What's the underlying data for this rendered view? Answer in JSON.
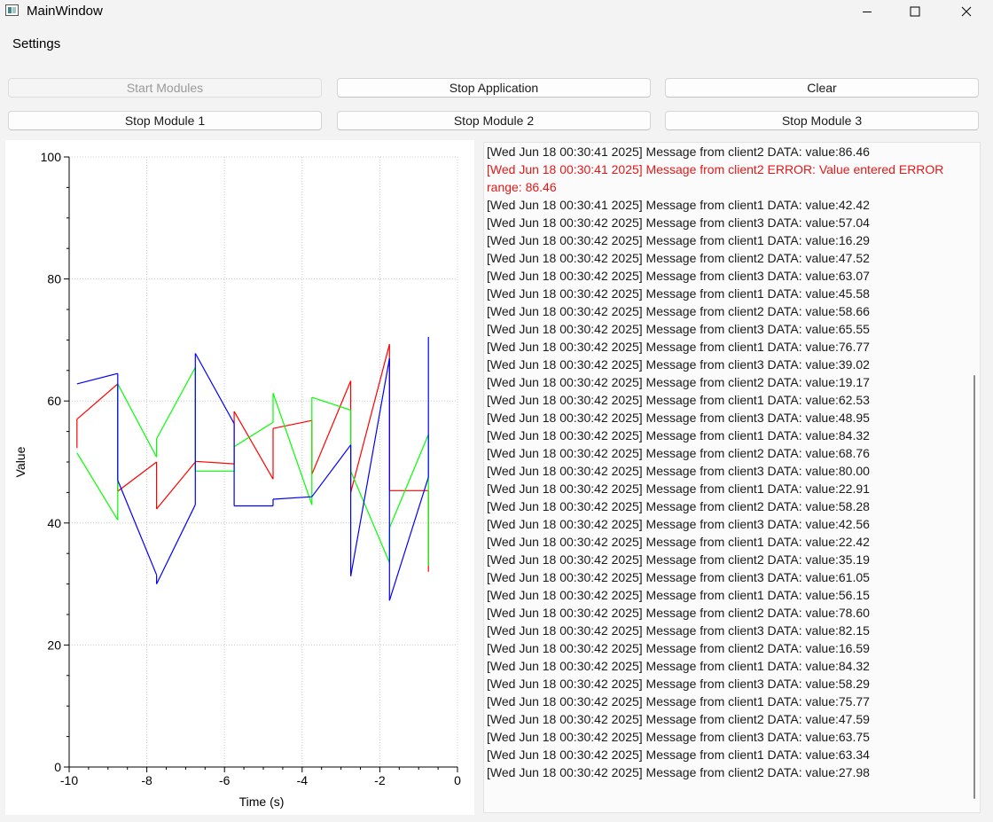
{
  "window": {
    "title": "MainWindow",
    "app_icon": "qt-window-icon",
    "controls": {
      "minimize": "minimize-icon",
      "maximize": "maximize-icon",
      "close": "close-icon"
    }
  },
  "menu": {
    "items": [
      "Settings"
    ]
  },
  "buttons": {
    "start_modules": {
      "label": "Start Modules",
      "enabled": false
    },
    "stop_application": {
      "label": "Stop Application",
      "enabled": true
    },
    "clear": {
      "label": "Clear",
      "enabled": true
    },
    "stop_module_1": {
      "label": "Stop Module 1",
      "enabled": true
    },
    "stop_module_2": {
      "label": "Stop Module 2",
      "enabled": true
    },
    "stop_module_3": {
      "label": "Stop Module 3",
      "enabled": true
    }
  },
  "chart_data": {
    "type": "line",
    "title": "",
    "xlabel": "Time (s)",
    "ylabel": "Value",
    "xlim": [
      -10,
      0
    ],
    "ylim": [
      0,
      100
    ],
    "xticks": [
      -10,
      -8,
      -6,
      -4,
      -2,
      0
    ],
    "yticks": [
      0,
      20,
      40,
      60,
      80,
      100
    ],
    "grid": true,
    "series": [
      {
        "color": "#ff0000",
        "x": [
          -9.8,
          -9.8,
          -8.75,
          -8.75,
          -7.75,
          -7.75,
          -6.75,
          -6.75,
          -5.75,
          -5.75,
          -4.75,
          -4.75,
          -3.75,
          -3.75,
          -2.75,
          -2.75,
          -1.75,
          -1.75,
          -0.75,
          -0.75
        ],
        "y": [
          52.3,
          57.0,
          62.8,
          45.2,
          50.0,
          42.3,
          50.0,
          50.1,
          49.7,
          58.3,
          47.2,
          55.5,
          56.8,
          48.0,
          63.3,
          45.0,
          69.3,
          45.3,
          45.3,
          32.0
        ]
      },
      {
        "color": "#00ff00",
        "x": [
          -9.8,
          -8.75,
          -8.75,
          -7.75,
          -7.75,
          -6.75,
          -6.75,
          -5.75,
          -5.75,
          -4.75,
          -4.75,
          -3.75,
          -3.75,
          -2.75,
          -2.75,
          -1.75,
          -1.75,
          -0.75,
          -0.75
        ],
        "y": [
          51.5,
          40.5,
          62.8,
          50.8,
          53.8,
          65.5,
          48.5,
          48.5,
          52.5,
          56.5,
          61.3,
          43.0,
          60.6,
          58.5,
          48.5,
          33.5,
          39.2,
          54.5,
          33.0
        ]
      },
      {
        "color": "#0000ff",
        "x": [
          -9.8,
          -8.75,
          -8.75,
          -7.75,
          -7.75,
          -6.75,
          -6.75,
          -5.75,
          -5.75,
          -4.75,
          -4.75,
          -3.75,
          -2.75,
          -2.75,
          -1.75,
          -1.75,
          -0.75,
          -0.75
        ],
        "y": [
          62.8,
          64.5,
          47.0,
          31.5,
          30.0,
          43.0,
          67.8,
          56.3,
          42.8,
          42.8,
          43.9,
          44.3,
          52.8,
          31.3,
          67.0,
          27.3,
          47.5,
          70.5
        ]
      }
    ]
  },
  "log": {
    "entries": [
      {
        "text": "[Wed Jun 18 00:30:41 2025] Message from client2 DATA: value:86.46",
        "error": false
      },
      {
        "text": "[Wed Jun 18 00:30:41 2025] Message from client2 ERROR: Value entered ERROR range: 86.46",
        "error": true
      },
      {
        "text": "[Wed Jun 18 00:30:41 2025] Message from client1 DATA: value:42.42",
        "error": false
      },
      {
        "text": "[Wed Jun 18 00:30:42 2025] Message from client3 DATA: value:57.04",
        "error": false
      },
      {
        "text": "[Wed Jun 18 00:30:42 2025] Message from client1 DATA: value:16.29",
        "error": false
      },
      {
        "text": "[Wed Jun 18 00:30:42 2025] Message from client2 DATA: value:47.52",
        "error": false
      },
      {
        "text": "[Wed Jun 18 00:30:42 2025] Message from client3 DATA: value:63.07",
        "error": false
      },
      {
        "text": "[Wed Jun 18 00:30:42 2025] Message from client1 DATA: value:45.58",
        "error": false
      },
      {
        "text": "[Wed Jun 18 00:30:42 2025] Message from client2 DATA: value:58.66",
        "error": false
      },
      {
        "text": "[Wed Jun 18 00:30:42 2025] Message from client3 DATA: value:65.55",
        "error": false
      },
      {
        "text": "[Wed Jun 18 00:30:42 2025] Message from client1 DATA: value:76.77",
        "error": false
      },
      {
        "text": "[Wed Jun 18 00:30:42 2025] Message from client3 DATA: value:39.02",
        "error": false
      },
      {
        "text": "[Wed Jun 18 00:30:42 2025] Message from client2 DATA: value:19.17",
        "error": false
      },
      {
        "text": "[Wed Jun 18 00:30:42 2025] Message from client1 DATA: value:62.53",
        "error": false
      },
      {
        "text": "[Wed Jun 18 00:30:42 2025] Message from client3 DATA: value:48.95",
        "error": false
      },
      {
        "text": "[Wed Jun 18 00:30:42 2025] Message from client1 DATA: value:84.32",
        "error": false
      },
      {
        "text": "[Wed Jun 18 00:30:42 2025] Message from client2 DATA: value:68.76",
        "error": false
      },
      {
        "text": "[Wed Jun 18 00:30:42 2025] Message from client3 DATA: value:80.00",
        "error": false
      },
      {
        "text": "[Wed Jun 18 00:30:42 2025] Message from client1 DATA: value:22.91",
        "error": false
      },
      {
        "text": "[Wed Jun 18 00:30:42 2025] Message from client2 DATA: value:58.28",
        "error": false
      },
      {
        "text": "[Wed Jun 18 00:30:42 2025] Message from client3 DATA: value:42.56",
        "error": false
      },
      {
        "text": "[Wed Jun 18 00:30:42 2025] Message from client1 DATA: value:22.42",
        "error": false
      },
      {
        "text": "[Wed Jun 18 00:30:42 2025] Message from client2 DATA: value:35.19",
        "error": false
      },
      {
        "text": "[Wed Jun 18 00:30:42 2025] Message from client3 DATA: value:61.05",
        "error": false
      },
      {
        "text": "[Wed Jun 18 00:30:42 2025] Message from client1 DATA: value:56.15",
        "error": false
      },
      {
        "text": "[Wed Jun 18 00:30:42 2025] Message from client2 DATA: value:78.60",
        "error": false
      },
      {
        "text": "[Wed Jun 18 00:30:42 2025] Message from client3 DATA: value:82.15",
        "error": false
      },
      {
        "text": "[Wed Jun 18 00:30:42 2025] Message from client2 DATA: value:16.59",
        "error": false
      },
      {
        "text": "[Wed Jun 18 00:30:42 2025] Message from client1 DATA: value:84.32",
        "error": false
      },
      {
        "text": "[Wed Jun 18 00:30:42 2025] Message from client3 DATA: value:58.29",
        "error": false
      },
      {
        "text": "[Wed Jun 18 00:30:42 2025] Message from client1 DATA: value:75.77",
        "error": false
      },
      {
        "text": "[Wed Jun 18 00:30:42 2025] Message from client2 DATA: value:47.59",
        "error": false
      },
      {
        "text": "[Wed Jun 18 00:30:42 2025] Message from client3 DATA: value:63.75",
        "error": false
      },
      {
        "text": "[Wed Jun 18 00:30:42 2025] Message from client1 DATA: value:63.34",
        "error": false
      },
      {
        "text": "[Wed Jun 18 00:30:42 2025] Message from client2 DATA: value:27.98",
        "error": false
      }
    ]
  }
}
